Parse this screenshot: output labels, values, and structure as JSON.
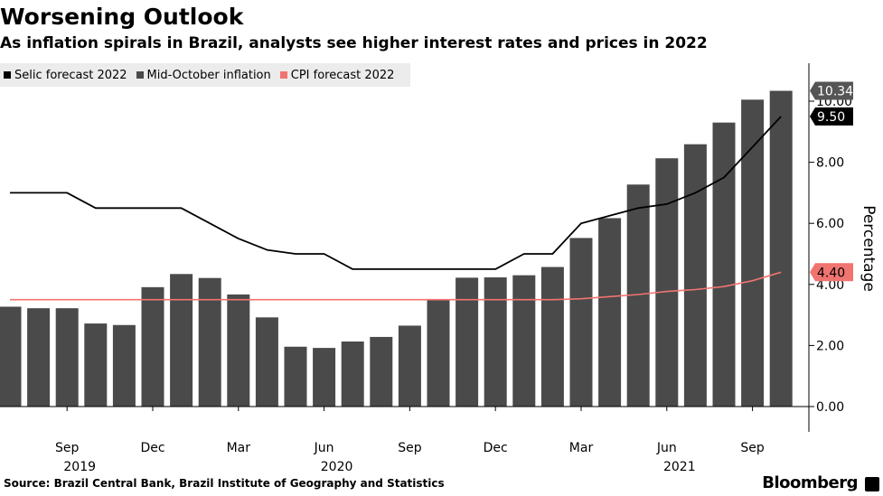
{
  "header": {
    "title": "Worsening Outlook",
    "subtitle": "As inflation spirals in Brazil, analysts see higher interest rates and prices in 2022"
  },
  "footer": {
    "source": "Source: Brazil Central Bank, Brazil Institute of Geography and Statistics",
    "brand": "Bloomberg"
  },
  "colors": {
    "bar": "#4a4a4a",
    "selic_line": "#000000",
    "cpi_line": "#f07470",
    "legend_bg": "#ececec",
    "axis_text": "#000000",
    "label_dark": "#555555"
  },
  "chart_data": {
    "type": "bar",
    "ylabel": "Percentage",
    "ylim": [
      0,
      10.5
    ],
    "yticks": [
      "0.00",
      "2.00",
      "4.00",
      "6.00",
      "8.00",
      "10.00"
    ],
    "x_tick_labels": [
      {
        "month": "Sep",
        "year": "2019",
        "index": 2
      },
      {
        "month": "Dec",
        "year": "",
        "index": 5
      },
      {
        "month": "Mar",
        "year": "",
        "index": 8
      },
      {
        "month": "Jun",
        "year": "2020",
        "index": 11
      },
      {
        "month": "Sep",
        "year": "",
        "index": 14
      },
      {
        "month": "Dec",
        "year": "",
        "index": 17
      },
      {
        "month": "Mar",
        "year": "",
        "index": 20
      },
      {
        "month": "Jun",
        "year": "2021",
        "index": 23
      },
      {
        "month": "Sep",
        "year": "",
        "index": 26
      }
    ],
    "categories": [
      "2019-07",
      "2019-08",
      "2019-09",
      "2019-10",
      "2019-11",
      "2019-12",
      "2020-01",
      "2020-02",
      "2020-03",
      "2020-04",
      "2020-05",
      "2020-06",
      "2020-07",
      "2020-08",
      "2020-09",
      "2020-10",
      "2020-11",
      "2020-12",
      "2021-01",
      "2021-02",
      "2021-03",
      "2021-04",
      "2021-05",
      "2021-06",
      "2021-07",
      "2021-08",
      "2021-09",
      "2021-10"
    ],
    "series": [
      {
        "name": "Mid-October inflation",
        "type": "bar",
        "values": [
          3.27,
          3.22,
          3.22,
          2.72,
          2.67,
          3.91,
          4.34,
          4.21,
          3.67,
          2.92,
          1.96,
          1.92,
          2.13,
          2.28,
          2.65,
          3.52,
          4.22,
          4.23,
          4.3,
          4.57,
          5.52,
          6.17,
          7.27,
          8.13,
          8.59,
          9.3,
          10.05,
          10.34
        ],
        "end_label": "10.34"
      },
      {
        "name": "Selic forecast 2022",
        "type": "line",
        "values": [
          7.0,
          7.0,
          7.0,
          6.5,
          6.5,
          6.5,
          6.5,
          6.0,
          5.5,
          5.13,
          5.0,
          5.0,
          4.5,
          4.5,
          4.5,
          4.5,
          4.5,
          4.5,
          5.0,
          5.0,
          6.0,
          6.25,
          6.5,
          6.63,
          7.0,
          7.5,
          8.5,
          9.5
        ],
        "end_label": "9.50"
      },
      {
        "name": "CPI forecast 2022",
        "type": "line",
        "values": [
          3.5,
          3.5,
          3.5,
          3.5,
          3.5,
          3.5,
          3.5,
          3.5,
          3.5,
          3.5,
          3.5,
          3.5,
          3.5,
          3.5,
          3.5,
          3.5,
          3.5,
          3.5,
          3.5,
          3.5,
          3.53,
          3.6,
          3.67,
          3.77,
          3.83,
          3.93,
          4.12,
          4.4
        ],
        "end_label": "4.40"
      }
    ]
  }
}
